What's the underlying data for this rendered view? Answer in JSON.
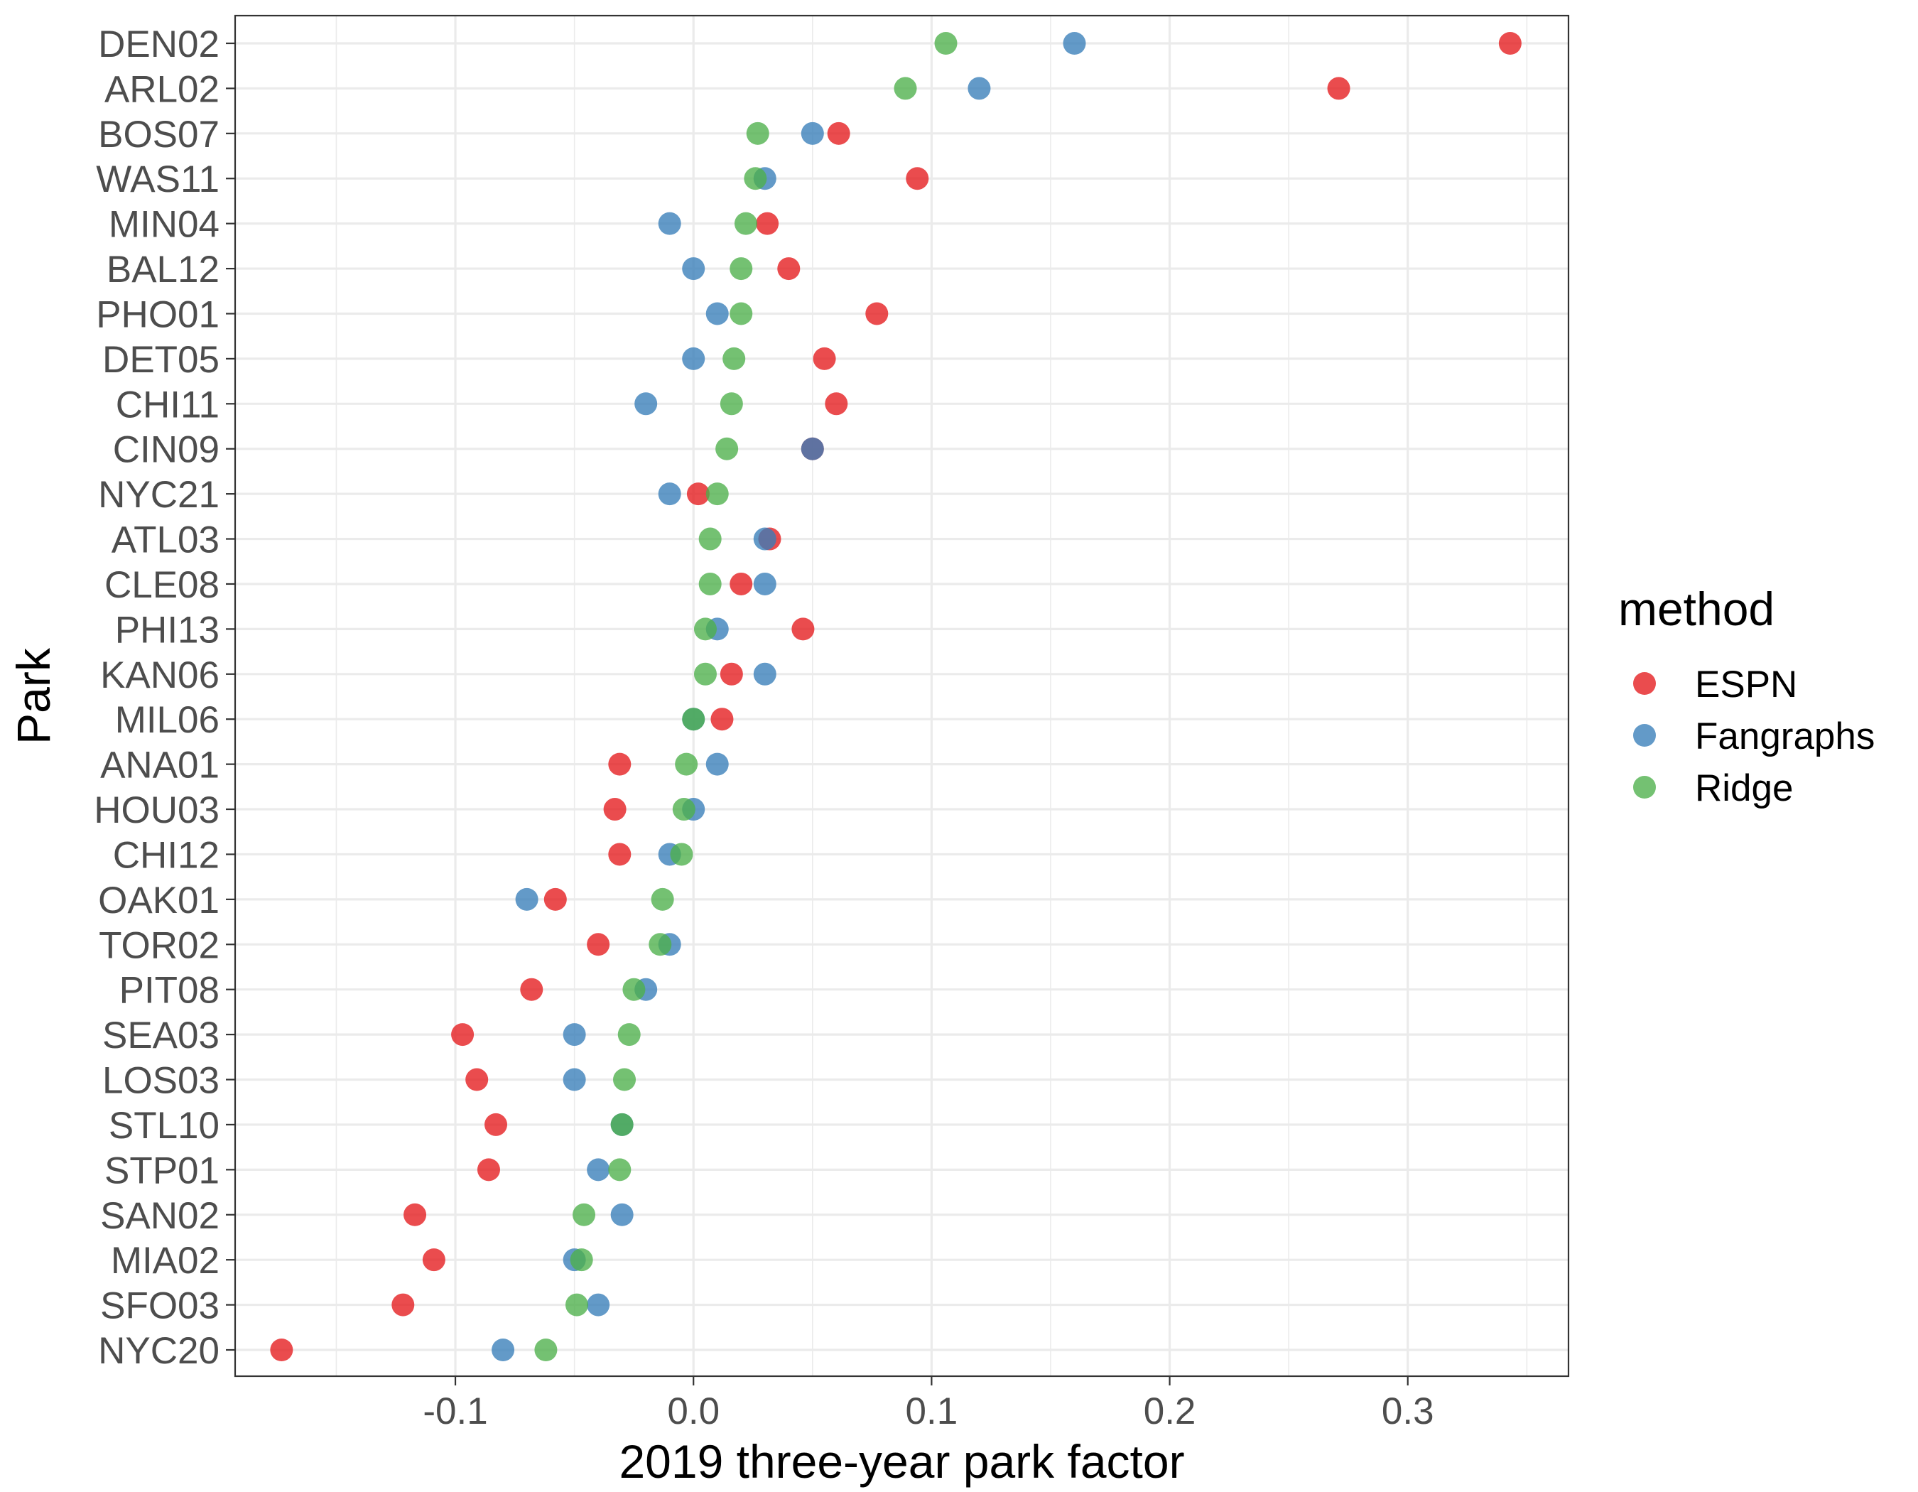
{
  "chart_data": {
    "type": "scatter",
    "xlabel": "2019 three-year park factor",
    "ylabel": "Park",
    "xlim": [
      -0.1925,
      0.3675
    ],
    "x_ticks": [
      -0.1,
      0.0,
      0.1,
      0.2,
      0.3
    ],
    "x_tick_labels": [
      "-0.1",
      "0.0",
      "0.1",
      "0.2",
      "0.3"
    ],
    "grid": true,
    "legend": {
      "title": "method",
      "placement": "right",
      "entries": [
        "ESPN",
        "Fangraphs",
        "Ridge"
      ]
    },
    "colors": {
      "ESPN": "#E41A1C",
      "Fangraphs": "#377EB8",
      "Ridge": "#4DAF4A"
    },
    "parks": [
      "DEN02",
      "ARL02",
      "BOS07",
      "WAS11",
      "MIN04",
      "BAL12",
      "PHO01",
      "DET05",
      "CHI11",
      "CIN09",
      "NYC21",
      "ATL03",
      "CLE08",
      "PHI13",
      "KAN06",
      "MIL06",
      "ANA01",
      "HOU03",
      "CHI12",
      "OAK01",
      "TOR02",
      "PIT08",
      "SEA03",
      "LOS03",
      "STL10",
      "STP01",
      "SAN02",
      "MIA02",
      "SFO03",
      "NYC20"
    ],
    "series": [
      {
        "name": "ESPN",
        "values": [
          0.343,
          0.271,
          0.061,
          0.094,
          0.031,
          0.04,
          0.077,
          0.055,
          0.06,
          0.05,
          0.002,
          0.032,
          0.02,
          0.046,
          0.016,
          0.012,
          -0.031,
          -0.033,
          -0.031,
          -0.058,
          -0.04,
          -0.068,
          -0.097,
          -0.091,
          -0.083,
          -0.086,
          -0.117,
          -0.109,
          -0.122,
          -0.173
        ]
      },
      {
        "name": "Fangraphs",
        "values": [
          0.16,
          0.12,
          0.05,
          0.03,
          -0.01,
          0.0,
          0.01,
          0.0,
          -0.02,
          0.05,
          -0.01,
          0.03,
          0.03,
          0.01,
          0.03,
          0.0,
          0.01,
          0.0,
          -0.01,
          -0.07,
          -0.01,
          -0.02,
          -0.05,
          -0.05,
          -0.03,
          -0.04,
          -0.03,
          -0.05,
          -0.04,
          -0.08
        ]
      },
      {
        "name": "Ridge",
        "values": [
          0.106,
          0.089,
          0.027,
          0.026,
          0.022,
          0.02,
          0.02,
          0.017,
          0.016,
          0.014,
          0.01,
          0.007,
          0.007,
          0.005,
          0.005,
          0.0,
          -0.003,
          -0.004,
          -0.005,
          -0.013,
          -0.014,
          -0.025,
          -0.027,
          -0.029,
          -0.03,
          -0.031,
          -0.046,
          -0.047,
          -0.049,
          -0.062
        ]
      }
    ]
  }
}
